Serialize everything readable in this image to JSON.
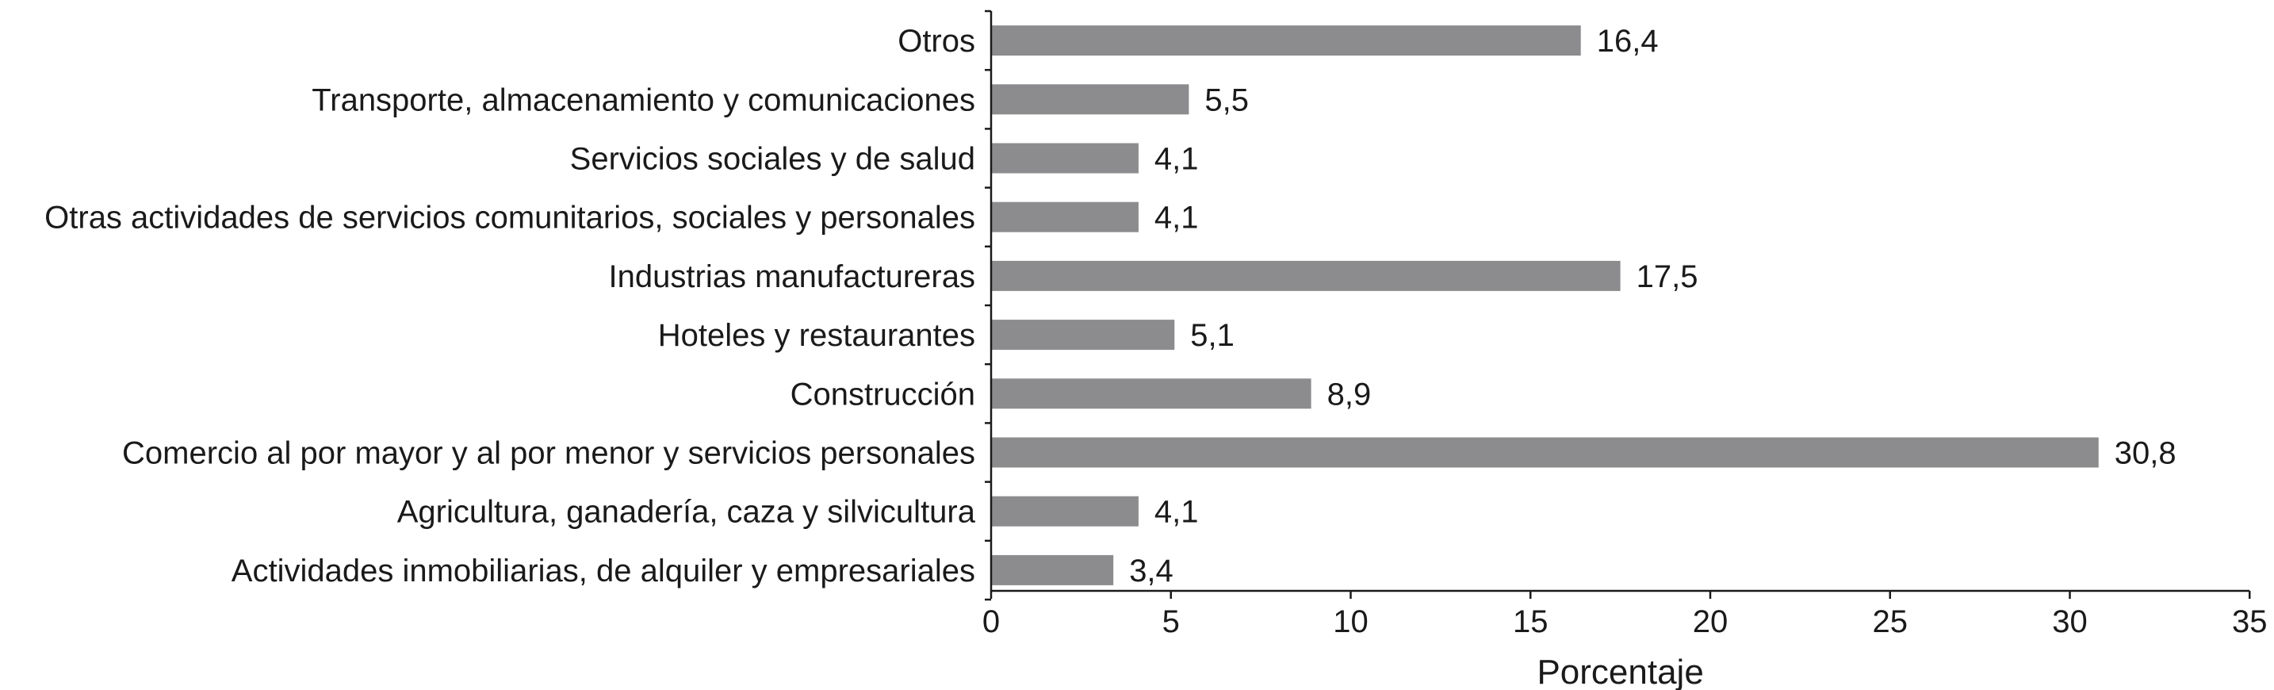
{
  "chart_data": {
    "type": "bar",
    "orientation": "horizontal",
    "categories": [
      "Otros",
      "Transporte, almacenamiento y comunicaciones",
      "Servicios sociales y de salud",
      "Otras actividades de servicios comunitarios, sociales y personales",
      "Industrias manufactureras",
      "Hoteles y restaurantes",
      "Construcción",
      "Comercio al por mayor y al por menor y servicios personales",
      "Agricultura, ganadería, caza y silvicultura",
      "Actividades inmobiliarias, de alquiler y empresariales"
    ],
    "values": [
      16.4,
      5.5,
      4.1,
      4.1,
      17.5,
      5.1,
      8.9,
      30.8,
      4.1,
      3.4
    ],
    "value_labels": [
      "16,4",
      "5,5",
      "4,1",
      "4,1",
      "17,5",
      "5,1",
      "8,9",
      "30,8",
      "4,1",
      "3,4"
    ],
    "title": "",
    "xlabel": "Porcentaje",
    "ylabel": "",
    "xlim": [
      0,
      35
    ],
    "xticks": [
      0,
      5,
      10,
      15,
      20,
      25,
      30,
      35
    ],
    "grid": false,
    "legend": "none",
    "bar_color": "#8c8c8e"
  }
}
